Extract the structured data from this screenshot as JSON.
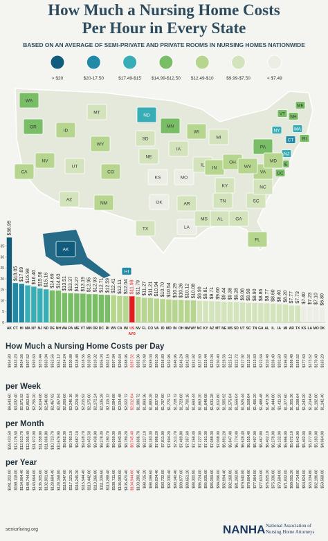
{
  "header": {
    "title_lines": [
      "How Much a Nursing Home Costs",
      "Per Hour in Every State"
    ],
    "subtitle": "BASED ON AN AVERAGE OF SEMI-PRIVATE AND PRIVATE ROOMS IN NURSING HOMES NATIONWIDE"
  },
  "legend": [
    {
      "label": "> $20",
      "color": "#0f5c7c"
    },
    {
      "label": "$20-17.50",
      "color": "#228aa6"
    },
    {
      "label": "$17.49-$15",
      "color": "#39adb5"
    },
    {
      "label": "$14.99-$12.50",
      "color": "#79bd67"
    },
    {
      "label": "$12.49-$10",
      "color": "#b6d58e"
    },
    {
      "label": "$9.99-$7.50",
      "color": "#d3e4bd"
    },
    {
      "label": "< $7.49",
      "color": "#eceee6"
    }
  ],
  "map": {
    "states": [
      {
        "label": "WA",
        "color": "#79bd67"
      },
      {
        "label": "OR",
        "color": "#79bd67"
      },
      {
        "label": "CA",
        "color": "#b6d58e"
      },
      {
        "label": "NV",
        "color": "#b6d58e"
      },
      {
        "label": "ID",
        "color": "#b6d58e"
      },
      {
        "label": "MT",
        "color": "#d3e4bd"
      },
      {
        "label": "WY",
        "color": "#b6d58e"
      },
      {
        "label": "UT",
        "color": "#d3e4bd"
      },
      {
        "label": "AZ",
        "color": "#d3e4bd"
      },
      {
        "label": "CO",
        "color": "#b6d58e"
      },
      {
        "label": "NM",
        "color": "#b6d58e"
      },
      {
        "label": "ND",
        "color": "#39adb5"
      },
      {
        "label": "SD",
        "color": "#d3e4bd"
      },
      {
        "label": "NE",
        "color": "#d3e4bd"
      },
      {
        "label": "KS",
        "color": "#eceee6"
      },
      {
        "label": "OK",
        "color": "#eceee6"
      },
      {
        "label": "TX",
        "color": "#d3e4bd"
      },
      {
        "label": "MN",
        "color": "#79bd67"
      },
      {
        "label": "IA",
        "color": "#d3e4bd"
      },
      {
        "label": "MO",
        "color": "#eceee6"
      },
      {
        "label": "AR",
        "color": "#d3e4bd"
      },
      {
        "label": "LA",
        "color": "#eceee6"
      },
      {
        "label": "WI",
        "color": "#b6d58e"
      },
      {
        "label": "IL",
        "color": "#d3e4bd"
      },
      {
        "label": "MI",
        "color": "#d3e4bd"
      },
      {
        "label": "IN",
        "color": "#b6d58e"
      },
      {
        "label": "OH",
        "color": "#b6d58e"
      },
      {
        "label": "KY",
        "color": "#d3e4bd"
      },
      {
        "label": "TN",
        "color": "#d3e4bd"
      },
      {
        "label": "MS",
        "color": "#d3e4bd"
      },
      {
        "label": "AL",
        "color": "#d3e4bd"
      },
      {
        "label": "GA",
        "color": "#d3e4bd"
      },
      {
        "label": "FL",
        "color": "#b6d58e"
      },
      {
        "label": "SC",
        "color": "#d3e4bd"
      },
      {
        "label": "NC",
        "color": "#d3e4bd"
      },
      {
        "label": "VA",
        "color": "#b6d58e"
      },
      {
        "label": "WV",
        "color": "#b6d58e"
      },
      {
        "label": "PA",
        "color": "#79bd67"
      },
      {
        "label": "NY",
        "color": "#39adb5"
      },
      {
        "label": "VT",
        "color": "#79bd67"
      },
      {
        "label": "NH",
        "color": "#79bd67"
      },
      {
        "label": "ME",
        "color": "#79bd67"
      },
      {
        "label": "MA",
        "color": "#39adb5"
      },
      {
        "label": "CT",
        "color": "#228aa6"
      },
      {
        "label": "RI",
        "color": "#79bd67"
      },
      {
        "label": "NJ",
        "color": "#39adb5"
      },
      {
        "label": "DE",
        "color": "#79bd67"
      },
      {
        "label": "MD",
        "color": "#b6d58e"
      },
      {
        "label": "DC",
        "color": "#79bd67"
      },
      {
        "label": "AK",
        "color": "#0f5c7c"
      },
      {
        "label": "HI",
        "color": "#228aa6"
      }
    ]
  },
  "chart_data": {
    "type": "bar",
    "categories": [
      "AK",
      "CT",
      "HI",
      "MA",
      "NY",
      "NJ",
      "ND",
      "DE",
      "NH",
      "WA",
      "PA",
      "ME",
      "VT",
      "MN",
      "OR",
      "DC",
      "RI",
      "WV",
      "CA",
      "WI",
      "US",
      "NV",
      "FL",
      "CO",
      "VA",
      "ID",
      "MD",
      "IN",
      "OH",
      "NM",
      "WY",
      "NC",
      "KY",
      "AZ",
      "MT",
      "NE",
      "MS",
      "SD",
      "UT",
      "SC",
      "TN",
      "GA",
      "AL",
      "IL",
      "IA",
      "MI",
      "AR",
      "TX",
      "KS",
      "LA",
      "MO",
      "OK"
    ],
    "values": [
      38.95,
      18.05,
      17.69,
      16.98,
      16.4,
      15.56,
      15.16,
      14.69,
      14.63,
      13.51,
      13.37,
      13.27,
      13.19,
      12.95,
      12.93,
      12.71,
      12.59,
      12.41,
      12.11,
      12.04,
      11.98,
      11.79,
      11.27,
      11.21,
      10.94,
      10.7,
      10.54,
      10.29,
      10.26,
      10.12,
      10.08,
      9.9,
      9.81,
      9.71,
      9.6,
      9.44,
      9.38,
      9.28,
      9.08,
      8.98,
      8.9,
      8.86,
      8.77,
      8.6,
      8.4,
      8.2,
      7.77,
      7.73,
      7.4,
      7.23,
      7.1,
      6.8
    ],
    "value_labels": [
      "$38.95",
      "$18.05",
      "$17.69",
      "$16.98",
      "$16.40",
      "$15.56",
      "$15.16",
      "$14.69",
      "$14.63",
      "$13.51",
      "$13.37",
      "$13.27",
      "$13.19",
      "$12.95",
      "$12.93",
      "$12.71",
      "$12.59",
      "$12.41",
      "$12.11",
      "$12.04",
      "$11.98",
      "$11.79",
      "$11.27",
      "$11.21",
      "$10.94",
      "$10.70",
      "$10.54",
      "$10.29",
      "$10.26",
      "$10.12",
      "$10.08",
      "$9.90",
      "$9.81",
      "$9.71",
      "$9.60",
      "$9.44",
      "$9.38",
      "$9.28",
      "$9.08",
      "$8.98",
      "$8.90",
      "$8.86",
      "$8.77",
      "$8.60",
      "$8.40",
      "$8.20",
      "$7.77",
      "$7.73",
      "$7.40",
      "$7.23",
      "$7.10",
      "$6.80"
    ],
    "colors": [
      "#0f5c7c",
      "#228aa6",
      "#228aa6",
      "#39adb5",
      "#39adb5",
      "#39adb5",
      "#39adb5",
      "#79bd67",
      "#79bd67",
      "#79bd67",
      "#79bd67",
      "#79bd67",
      "#79bd67",
      "#79bd67",
      "#79bd67",
      "#79bd67",
      "#79bd67",
      "#b6d58e",
      "#b6d58e",
      "#b6d58e",
      "#e31d1d",
      "#b6d58e",
      "#b6d58e",
      "#b6d58e",
      "#b6d58e",
      "#b6d58e",
      "#b6d58e",
      "#b6d58e",
      "#b6d58e",
      "#b6d58e",
      "#b6d58e",
      "#d3e4bd",
      "#d3e4bd",
      "#d3e4bd",
      "#d3e4bd",
      "#d3e4bd",
      "#d3e4bd",
      "#d3e4bd",
      "#d3e4bd",
      "#d3e4bd",
      "#d3e4bd",
      "#d3e4bd",
      "#d3e4bd",
      "#d3e4bd",
      "#d3e4bd",
      "#d3e4bd",
      "#d3e4bd",
      "#d3e4bd",
      "#eceee6",
      "#eceee6",
      "#eceee6",
      "#eceee6"
    ],
    "annotation": "AVG",
    "ylim": [
      0,
      40
    ],
    "yticks": [
      0,
      5,
      10,
      15,
      20,
      25,
      30,
      35
    ]
  },
  "tables": [
    {
      "title": "How Much a Nursing Home Costs per Day",
      "values": [
        "$934.80",
        "$433.20",
        "$424.56",
        "$407.52",
        "$393.60",
        "$373.44",
        "$363.84",
        "$352.56",
        "$351.12",
        "$324.24",
        "$320.88",
        "$318.48",
        "$316.56",
        "$310.80",
        "$310.32",
        "$305.04",
        "$302.16",
        "$297.84",
        "$290.64",
        "$288.96",
        "$287.52",
        "$282.96",
        "$270.48",
        "$269.04",
        "$262.56",
        "$256.80",
        "$252.96",
        "$246.96",
        "$246.24",
        "$242.88",
        "$241.92",
        "$237.60",
        "$235.44",
        "$233.04",
        "$230.40",
        "$226.56",
        "$225.12",
        "$222.72",
        "$217.92",
        "$215.52",
        "$213.60",
        "$212.64",
        "$210.48",
        "$206.40",
        "$201.60",
        "$196.80",
        "$186.48",
        "$185.52",
        "$177.60",
        "$173.52",
        "$170.40",
        "$163.20"
      ]
    },
    {
      "title": "per Week",
      "values": [
        "$6,543.60",
        "$3,032.40",
        "$2,971.92",
        "$2,852.64",
        "$2,755.20",
        "$2,614.08",
        "$2,546.88",
        "$2,467.92",
        "$2,457.84",
        "$2,269.68",
        "$2,246.16",
        "$2,229.36",
        "$2,215.92",
        "$2,175.60",
        "$2,172.24",
        "$2,135.28",
        "$2,115.12",
        "$2,084.88",
        "$2,034.48",
        "$2,022.72",
        "$2,012.64",
        "$1,980.72",
        "$1,893.36",
        "$1,883.28",
        "$1,837.92",
        "$1,797.60",
        "$1,770.72",
        "$1,728.72",
        "$1,723.68",
        "$1,700.16",
        "$1,693.44",
        "$1,663.20",
        "$1,648.08",
        "$1,631.28",
        "$1,612.80",
        "$1,585.92",
        "$1,575.84",
        "$1,559.04",
        "$1,525.44",
        "$1,508.64",
        "$1,495.20",
        "$1,488.48",
        "$1,473.36",
        "$1,444.80",
        "$1,411.20",
        "$1,377.60",
        "$1,305.36",
        "$1,298.64",
        "$1,243.20",
        "$1,214.64",
        "$1,192.80",
        "$1,142.40"
      ]
    },
    {
      "title": "per Month",
      "values": [
        "$28,433.50",
        "$13,176.50",
        "$12,913.70",
        "$12,395.40",
        "$11,972.00",
        "$11,358.80",
        "$11,066.80",
        "$10,723.70",
        "$10,679.90",
        "$9,862.30",
        "$9,760.10",
        "$9,687.10",
        "$9,628.70",
        "$9,453.50",
        "$9,438.90",
        "$9,278.30",
        "$9,190.70",
        "$9,059.30",
        "$8,840.30",
        "$8,789.20",
        "$8,745.40",
        "$8,606.70",
        "$8,227.10",
        "$8,183.30",
        "$7,986.20",
        "$7,811.00",
        "$7,694.20",
        "$7,511.70",
        "$7,489.80",
        "$7,387.60",
        "$7,358.40",
        "$7,227.00",
        "$7,161.30",
        "$7,088.30",
        "$7,008.00",
        "$6,891.20",
        "$6,847.40",
        "$6,774.40",
        "$6,628.40",
        "$6,555.40",
        "$6,497.00",
        "$6,467.80",
        "$6,402.10",
        "$6,278.00",
        "$6,132.00",
        "$5,986.00",
        "$5,672.10",
        "$5,642.90",
        "$5,402.00",
        "$5,277.90",
        "$5,183.00",
        "$4,964.00"
      ]
    },
    {
      "title": "per Year",
      "values": [
        "$341,202.00",
        "$158,118.00",
        "$154,964.40",
        "$148,744.80",
        "$143,664.00",
        "$136,305.60",
        "$132,801.60",
        "$128,684.40",
        "$128,158.80",
        "$118,347.60",
        "$117,121.20",
        "$116,245.20",
        "$115,544.40",
        "$113,442.00",
        "$113,266.80",
        "$111,339.60",
        "$110,288.40",
        "$108,711.60",
        "$106,083.60",
        "$105,470.40",
        "$104,944.80",
        "$103,280.40",
        "$98,725.20",
        "$98,199.60",
        "$95,834.40",
        "$93,732.00",
        "$92,330.40",
        "$90,140.40",
        "$89,877.60",
        "$88,651.20",
        "$88,300.80",
        "$86,724.00",
        "$85,935.60",
        "$85,059.60",
        "$84,096.00",
        "$82,694.40",
        "$82,168.80",
        "$81,292.80",
        "$79,540.80",
        "$78,664.80",
        "$77,964.00",
        "$77,613.60",
        "$76,825.20",
        "$75,336.00",
        "$73,584.00",
        "$71,832.00",
        "$68,065.20",
        "$67,714.80",
        "$64,824.00",
        "$63,334.80",
        "$62,196.00",
        "$59,568.00"
      ]
    }
  ],
  "footer": {
    "source": "seniorliving.org",
    "logo": "NANHA",
    "org_lines": [
      "National Association of",
      "Nursing Home Attorneys"
    ]
  }
}
